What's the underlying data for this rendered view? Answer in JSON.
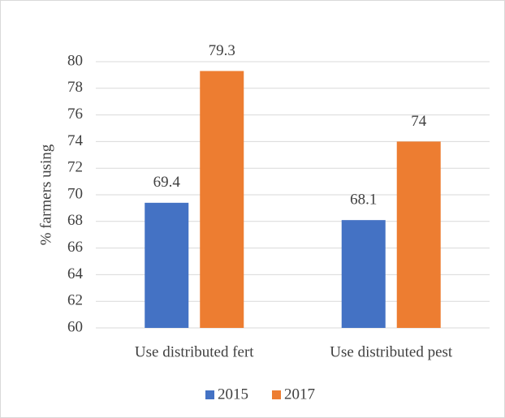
{
  "chart_data": {
    "type": "bar",
    "y_label": "% farmers using",
    "categories": [
      "Use distributed fert",
      "Use distributed pest"
    ],
    "series": [
      {
        "name": "2015",
        "color": "#4472c4",
        "values": [
          69.4,
          68.1
        ]
      },
      {
        "name": "2017",
        "color": "#ed7d31",
        "values": [
          79.3,
          74
        ]
      }
    ],
    "ylim": [
      60,
      80
    ],
    "yticks": [
      60,
      62,
      64,
      66,
      68,
      70,
      72,
      74,
      76,
      78,
      80
    ],
    "grid": true,
    "legend": "bottom",
    "data_labels": true
  }
}
